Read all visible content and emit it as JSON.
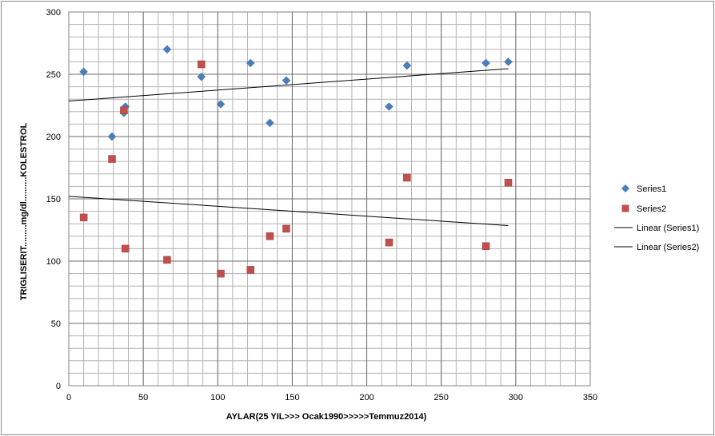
{
  "chart_data": {
    "type": "scatter",
    "xlabel": "AYLAR(25 YIL>>> Ocak1990>>>>>Temmuz2014)",
    "ylabel": "TRIGLISERIT.........mg/dl..........KOLESTROL",
    "xlim": [
      0,
      350
    ],
    "ylim": [
      0,
      300
    ],
    "x_ticks": [
      0,
      50,
      100,
      150,
      200,
      250,
      300,
      350
    ],
    "y_ticks": [
      0,
      50,
      100,
      150,
      200,
      250,
      300
    ],
    "grid": true,
    "minor_grid_x": 10,
    "minor_grid_y": 10,
    "legend_position": "right",
    "series": [
      {
        "name": "Series1",
        "marker": "diamond",
        "color": "#4a7ebb",
        "x": [
          10,
          29,
          37,
          38,
          66,
          89,
          102,
          122,
          135,
          146,
          215,
          227,
          280,
          295
        ],
        "y": [
          252,
          200,
          219,
          224,
          270,
          248,
          226,
          259,
          211,
          245,
          224,
          257,
          259,
          260
        ]
      },
      {
        "name": "Series2",
        "marker": "square",
        "color": "#c0504d",
        "x": [
          10,
          29,
          37,
          38,
          66,
          89,
          102,
          122,
          135,
          146,
          215,
          227,
          280,
          295
        ],
        "y": [
          135,
          182,
          221,
          110,
          101,
          258,
          90,
          93,
          120,
          126,
          115,
          167,
          112,
          163
        ]
      }
    ],
    "trendlines": [
      {
        "name": "Linear (Series1)",
        "color": "#000000",
        "x": [
          0,
          295
        ],
        "y": [
          228.5,
          254.5
        ]
      },
      {
        "name": "Linear (Series2)",
        "color": "#000000",
        "x": [
          0,
          295
        ],
        "y": [
          152,
          128.5
        ]
      }
    ]
  }
}
